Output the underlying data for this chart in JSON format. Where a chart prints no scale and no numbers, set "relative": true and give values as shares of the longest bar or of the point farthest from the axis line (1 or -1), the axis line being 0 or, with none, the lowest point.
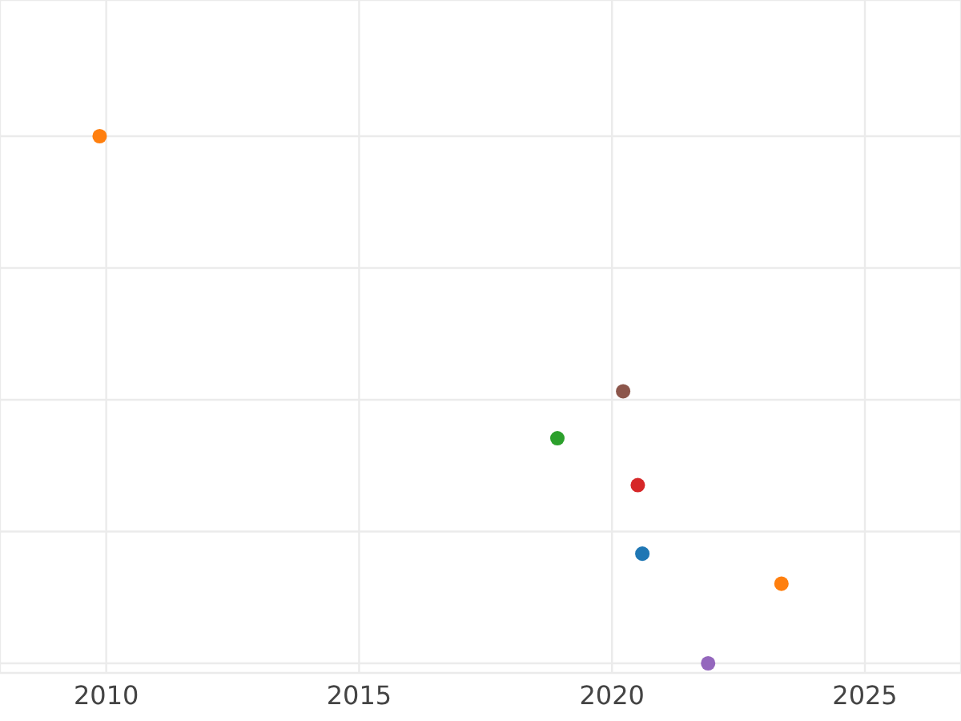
{
  "chart_data": {
    "type": "scatter",
    "relative": true,
    "x": [
      2009.87,
      2020.22,
      2018.92,
      2020.51,
      2020.6,
      2023.35,
      2021.9
    ],
    "values": [
      1,
      0.516,
      0.427,
      0.338,
      0.208,
      0.151,
      0
    ],
    "colors": [
      "#ff7f0e",
      "#8c564b",
      "#2ca02c",
      "#d62728",
      "#1f77b4",
      "#ff7f0e",
      "#9467bd"
    ],
    "xlim": [
      2007.9,
      2026.9
    ],
    "xticks": [
      2010,
      2015,
      2020,
      2025
    ],
    "grid": true,
    "marker": "circle"
  }
}
